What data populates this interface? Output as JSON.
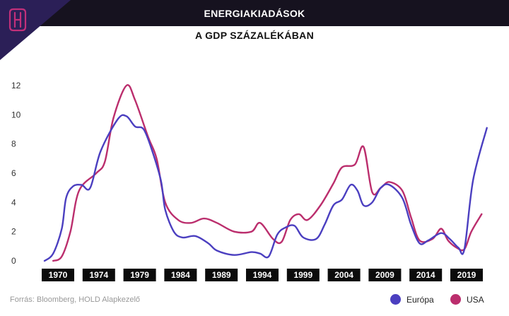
{
  "header": {
    "title": "ENERGIAKIADÁSOK",
    "subtitle": "A GDP SZÁZALÉKÁBAN"
  },
  "logo": {
    "icon": "hold-h-logo-icon",
    "color": "#c2307a",
    "bg": "#2b1f57"
  },
  "source": "Forrás: Bloomberg, HOLD Alapkezelő",
  "chart_data": {
    "type": "line",
    "title": "ENERGIAKIADÁSOK",
    "subtitle": "A GDP SZÁZALÉKÁBAN",
    "xlabel": "",
    "ylabel": "",
    "ylim": [
      0,
      12
    ],
    "xlim": [
      1970,
      2021
    ],
    "y_ticks": [
      0,
      2,
      4,
      6,
      8,
      10,
      12
    ],
    "x_ticks": [
      "1970",
      "1974",
      "1979",
      "1984",
      "1989",
      "1994",
      "1999",
      "2004",
      "2009",
      "2014",
      "2019"
    ],
    "grid": false,
    "legend": "bottom-right",
    "series": [
      {
        "name": "Európa",
        "color": "#4b3fc0",
        "points": [
          [
            1970,
            0.0
          ],
          [
            1971,
            0.5
          ],
          [
            1972,
            2.2
          ],
          [
            1972.5,
            4.3
          ],
          [
            1973.3,
            5.1
          ],
          [
            1974.3,
            5.2
          ],
          [
            1975.3,
            5.0
          ],
          [
            1976.5,
            7.5
          ],
          [
            1978.5,
            9.7
          ],
          [
            1979.5,
            9.9
          ],
          [
            1980.5,
            9.2
          ],
          [
            1981.5,
            9.0
          ],
          [
            1982.5,
            7.5
          ],
          [
            1983.5,
            5.5
          ],
          [
            1984,
            3.5
          ],
          [
            1985,
            2.0
          ],
          [
            1986,
            1.6
          ],
          [
            1987.5,
            1.7
          ],
          [
            1989,
            1.2
          ],
          [
            1990,
            0.7
          ],
          [
            1992,
            0.4
          ],
          [
            1994,
            0.6
          ],
          [
            1995,
            0.5
          ],
          [
            1996,
            0.3
          ],
          [
            1997,
            1.8
          ],
          [
            1998,
            2.3
          ],
          [
            1999,
            2.4
          ],
          [
            2000,
            1.6
          ],
          [
            2001.5,
            1.5
          ],
          [
            2002.5,
            2.5
          ],
          [
            2003.5,
            3.8
          ],
          [
            2004.5,
            4.2
          ],
          [
            2005.5,
            5.2
          ],
          [
            2006.3,
            4.8
          ],
          [
            2007,
            3.8
          ],
          [
            2008,
            4.0
          ],
          [
            2009,
            5.0
          ],
          [
            2010,
            5.2
          ],
          [
            2011.5,
            4.3
          ],
          [
            2012.5,
            2.5
          ],
          [
            2013.5,
            1.2
          ],
          [
            2014.5,
            1.4
          ],
          [
            2016,
            1.9
          ],
          [
            2017,
            1.5
          ],
          [
            2018,
            0.9
          ],
          [
            2018.7,
            0.8
          ],
          [
            2019.7,
            5.5
          ],
          [
            2021.3,
            9.1
          ]
        ]
      },
      {
        "name": "USA",
        "color": "#bb2e6d",
        "points": [
          [
            1971,
            0.0
          ],
          [
            1972,
            0.3
          ],
          [
            1973,
            2.0
          ],
          [
            1974,
            4.8
          ],
          [
            1976,
            6.0
          ],
          [
            1977,
            6.8
          ],
          [
            1978,
            9.8
          ],
          [
            1979.5,
            12.0
          ],
          [
            1980.5,
            11.0
          ],
          [
            1982,
            8.5
          ],
          [
            1983,
            7.0
          ],
          [
            1984,
            4.0
          ],
          [
            1985.5,
            2.8
          ],
          [
            1987,
            2.6
          ],
          [
            1988.5,
            2.9
          ],
          [
            1990,
            2.6
          ],
          [
            1992,
            2.0
          ],
          [
            1994,
            2.0
          ],
          [
            1995,
            2.6
          ],
          [
            1996.5,
            1.5
          ],
          [
            1997.5,
            1.3
          ],
          [
            1998.5,
            2.8
          ],
          [
            1999.5,
            3.2
          ],
          [
            2000.5,
            2.8
          ],
          [
            2002,
            3.8
          ],
          [
            2003.5,
            5.3
          ],
          [
            2004.5,
            6.4
          ],
          [
            2006,
            6.6
          ],
          [
            2007,
            7.8
          ],
          [
            2008,
            4.7
          ],
          [
            2009,
            5.0
          ],
          [
            2010,
            5.4
          ],
          [
            2011.5,
            4.8
          ],
          [
            2012.5,
            3.0
          ],
          [
            2013.5,
            1.4
          ],
          [
            2015,
            1.5
          ],
          [
            2016,
            2.2
          ],
          [
            2016.8,
            1.4
          ],
          [
            2017.8,
            0.9
          ],
          [
            2018.7,
            0.8
          ],
          [
            2019.5,
            2.0
          ],
          [
            2020.7,
            3.2
          ]
        ]
      }
    ]
  }
}
